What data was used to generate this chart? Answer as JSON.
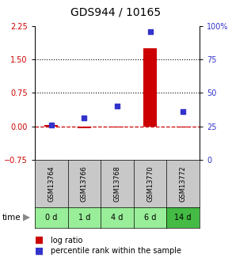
{
  "title": "GDS944 / 10165",
  "samples": [
    "GSM13764",
    "GSM13766",
    "GSM13768",
    "GSM13770",
    "GSM13772"
  ],
  "time_labels": [
    "0 d",
    "1 d",
    "4 d",
    "6 d",
    "14 d"
  ],
  "log_ratio": [
    0.02,
    -0.04,
    -0.03,
    1.75,
    -0.02
  ],
  "percentile": [
    26,
    31,
    40,
    96,
    36
  ],
  "ylim_left": [
    -0.75,
    2.25
  ],
  "ylim_right": [
    0,
    100
  ],
  "yticks_left": [
    -0.75,
    0,
    0.75,
    1.5,
    2.25
  ],
  "yticks_right": [
    0,
    25,
    50,
    75,
    100
  ],
  "hlines_dotted": [
    0.75,
    1.5
  ],
  "hline_dashed": 0,
  "bar_color": "#cc0000",
  "scatter_color": "#3333cc",
  "bar_width": 0.4,
  "title_fontsize": 10,
  "tick_fontsize": 7,
  "sample_bg_color": "#c8c8c8",
  "time_bg_color": "#99ee99",
  "time_bg_color_dark": "#44bb44",
  "dashed_color": "#cc0000",
  "legend_fontsize": 7
}
